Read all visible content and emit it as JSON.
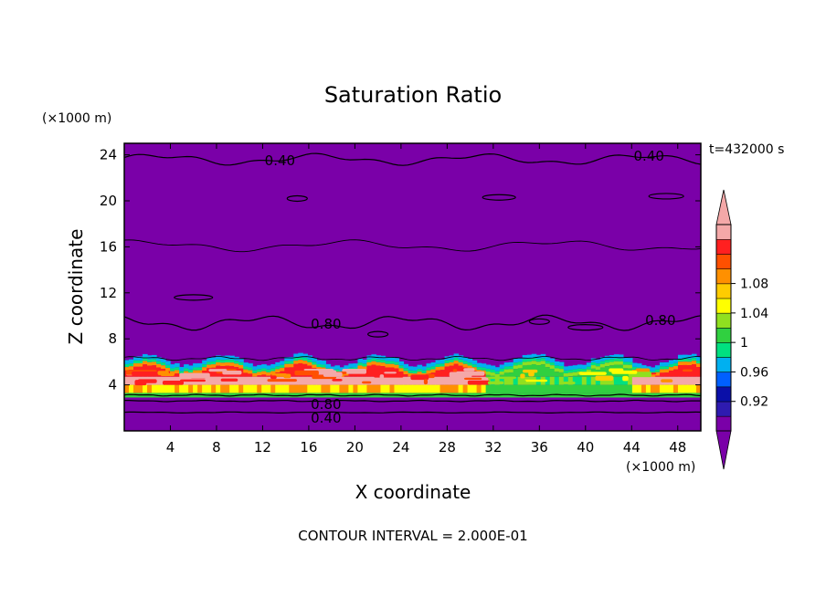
{
  "chart_data": {
    "type": "heatmap",
    "title": "Saturation Ratio",
    "xlabel": "X coordinate",
    "ylabel": "Z coordinate",
    "x_unit": "(×1000 m)",
    "z_unit": "(×1000 m)",
    "time_label": "t=432000 s",
    "footer": "CONTOUR INTERVAL = 2.000E-01",
    "xlim": [
      0,
      50
    ],
    "ylim": [
      0,
      25
    ],
    "x_ticks": [
      "4",
      "8",
      "12",
      "16",
      "20",
      "24",
      "28",
      "32",
      "36",
      "40",
      "44",
      "48"
    ],
    "y_ticks": [
      "4",
      "8",
      "12",
      "16",
      "20",
      "24"
    ],
    "colorbar": {
      "levels": [
        "0.92",
        "0.96",
        "1",
        "1.04",
        "1.08"
      ],
      "colors": [
        "#7a00a8",
        "#2e1bb0",
        "#0a0fa8",
        "#0060ff",
        "#00b0f0",
        "#00e080",
        "#30d040",
        "#90e020",
        "#ffff00",
        "#ffcc00",
        "#ff9000",
        "#ff5000",
        "#ff2020",
        "#f4a8a8"
      ]
    },
    "contour_labels": [
      {
        "text": "0.40",
        "x": 13.5,
        "y": 23.5
      },
      {
        "text": "0.40",
        "x": 45.5,
        "y": 23.9
      },
      {
        "text": "0.80",
        "x": 17.5,
        "y": 9.3
      },
      {
        "text": "0.80",
        "x": 46.5,
        "y": 9.6
      },
      {
        "text": "0.80",
        "x": 17.5,
        "y": 2.3
      },
      {
        "text": "0.40",
        "x": 17.5,
        "y": 1.1
      }
    ]
  }
}
